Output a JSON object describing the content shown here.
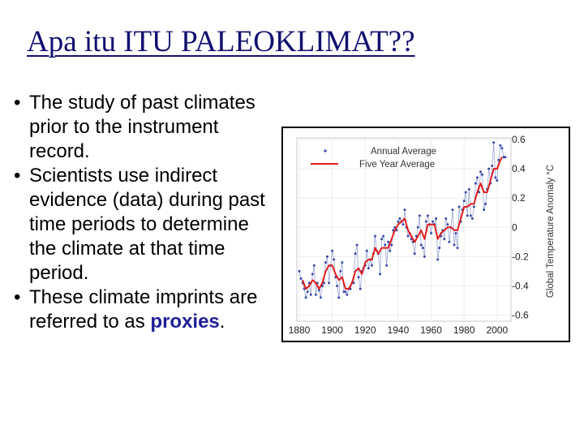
{
  "slide": {
    "title": "Apa itu ITU PALEOKLIMAT??",
    "bullets": [
      {
        "text": "The study of past climates prior to the instrument record."
      },
      {
        "text": "Scientists use indirect evidence (data) during past time periods to determine the climate at that time period."
      },
      {
        "text_before": "These climate imprints are referred to as ",
        "keyword": "proxies",
        "text_after": "."
      }
    ],
    "bullet_symbol": "•"
  },
  "colors": {
    "title": "#101070",
    "keyword": "#1f1f99",
    "annual": "#3a4aa8",
    "five_year": "#e11d1d",
    "annual_line": "#9aa4d4"
  },
  "chart_data": {
    "type": "line",
    "xlabel": "",
    "ylabel": "Global Temperature Anomaly °C",
    "xlim": [
      1880,
      2006
    ],
    "ylim": [
      -0.63,
      0.6
    ],
    "x_ticks": [
      1880,
      1900,
      1920,
      1940,
      1960,
      1980,
      2000
    ],
    "y_ticks": [
      "0.6",
      "0.4",
      "0.2",
      "0",
      "-0.2",
      "-0.4",
      "-0.6"
    ],
    "y_tick_values": [
      0.6,
      0.4,
      0.2,
      0,
      -0.2,
      -0.4,
      -0.6
    ],
    "y_axis_side": "right",
    "legend_position": "top",
    "series": [
      {
        "name": "Annual Average",
        "style": "dots",
        "x": [
          1880,
          1881,
          1882,
          1883,
          1884,
          1885,
          1886,
          1887,
          1888,
          1889,
          1890,
          1891,
          1892,
          1893,
          1894,
          1895,
          1896,
          1897,
          1898,
          1899,
          1900,
          1901,
          1902,
          1903,
          1904,
          1905,
          1906,
          1907,
          1908,
          1909,
          1910,
          1911,
          1912,
          1913,
          1914,
          1915,
          1916,
          1917,
          1918,
          1919,
          1920,
          1921,
          1922,
          1923,
          1924,
          1925,
          1926,
          1927,
          1928,
          1929,
          1930,
          1931,
          1932,
          1933,
          1934,
          1935,
          1936,
          1937,
          1938,
          1939,
          1940,
          1941,
          1942,
          1943,
          1944,
          1945,
          1946,
          1947,
          1948,
          1949,
          1950,
          1951,
          1952,
          1953,
          1954,
          1955,
          1956,
          1957,
          1958,
          1959,
          1960,
          1961,
          1962,
          1963,
          1964,
          1965,
          1966,
          1967,
          1968,
          1969,
          1970,
          1971,
          1972,
          1973,
          1974,
          1975,
          1976,
          1977,
          1978,
          1979,
          1980,
          1981,
          1982,
          1983,
          1984,
          1985,
          1986,
          1987,
          1988,
          1989,
          1990,
          1991,
          1992,
          1993,
          1994,
          1995,
          1996,
          1997,
          1998,
          1999,
          2000,
          2001,
          2002,
          2003,
          2004,
          2005
        ],
        "values": [
          -0.3,
          -0.35,
          -0.38,
          -0.42,
          -0.48,
          -0.44,
          -0.38,
          -0.46,
          -0.32,
          -0.26,
          -0.46,
          -0.38,
          -0.43,
          -0.48,
          -0.4,
          -0.38,
          -0.24,
          -0.2,
          -0.38,
          -0.26,
          -0.16,
          -0.22,
          -0.34,
          -0.4,
          -0.48,
          -0.3,
          -0.24,
          -0.44,
          -0.44,
          -0.46,
          -0.42,
          -0.42,
          -0.38,
          -0.38,
          -0.18,
          -0.12,
          -0.34,
          -0.42,
          -0.3,
          -0.28,
          -0.26,
          -0.16,
          -0.28,
          -0.22,
          -0.26,
          -0.18,
          -0.06,
          -0.16,
          -0.18,
          -0.32,
          -0.08,
          -0.06,
          -0.12,
          -0.26,
          -0.1,
          -0.16,
          -0.12,
          -0.02,
          0.0,
          -0.02,
          0.04,
          0.06,
          0.04,
          0.02,
          0.12,
          0.0,
          -0.06,
          -0.04,
          -0.08,
          -0.1,
          -0.18,
          -0.06,
          0.0,
          0.08,
          -0.12,
          -0.14,
          -0.2,
          0.04,
          0.08,
          0.02,
          -0.04,
          0.04,
          0.02,
          0.06,
          -0.22,
          -0.14,
          -0.06,
          -0.02,
          -0.08,
          0.06,
          0.02,
          -0.1,
          0.0,
          0.12,
          -0.12,
          -0.04,
          -0.14,
          0.14,
          0.04,
          0.12,
          0.18,
          0.24,
          0.08,
          0.26,
          0.08,
          0.06,
          0.14,
          0.3,
          0.34,
          0.24,
          0.38,
          0.36,
          0.12,
          0.16,
          0.26,
          0.4,
          0.3,
          0.42,
          0.58,
          0.34,
          0.32,
          0.46,
          0.56,
          0.54,
          0.48,
          0.48
        ]
      },
      {
        "name": "Five Year Average",
        "style": "line",
        "x": [
          1882,
          1884,
          1886,
          1888,
          1890,
          1892,
          1894,
          1896,
          1898,
          1900,
          1902,
          1904,
          1906,
          1908,
          1910,
          1912,
          1914,
          1916,
          1918,
          1920,
          1922,
          1924,
          1926,
          1928,
          1930,
          1932,
          1934,
          1936,
          1938,
          1940,
          1942,
          1944,
          1946,
          1948,
          1950,
          1952,
          1954,
          1956,
          1958,
          1960,
          1962,
          1964,
          1966,
          1968,
          1970,
          1972,
          1974,
          1976,
          1978,
          1980,
          1982,
          1984,
          1986,
          1988,
          1990,
          1992,
          1994,
          1996,
          1998,
          2000,
          2002,
          2003
        ],
        "values": [
          -0.36,
          -0.42,
          -0.4,
          -0.36,
          -0.38,
          -0.42,
          -0.38,
          -0.3,
          -0.26,
          -0.26,
          -0.32,
          -0.36,
          -0.34,
          -0.42,
          -0.42,
          -0.38,
          -0.3,
          -0.28,
          -0.32,
          -0.24,
          -0.22,
          -0.22,
          -0.14,
          -0.18,
          -0.14,
          -0.14,
          -0.14,
          -0.08,
          -0.02,
          0.02,
          0.04,
          0.06,
          -0.02,
          -0.06,
          -0.1,
          -0.06,
          -0.02,
          -0.08,
          0.02,
          0.02,
          0.02,
          -0.08,
          -0.04,
          -0.02,
          0.0,
          0.0,
          -0.02,
          -0.02,
          0.06,
          0.14,
          0.14,
          0.16,
          0.16,
          0.24,
          0.3,
          0.24,
          0.24,
          0.32,
          0.4,
          0.4,
          0.46,
          0.48
        ]
      }
    ]
  }
}
